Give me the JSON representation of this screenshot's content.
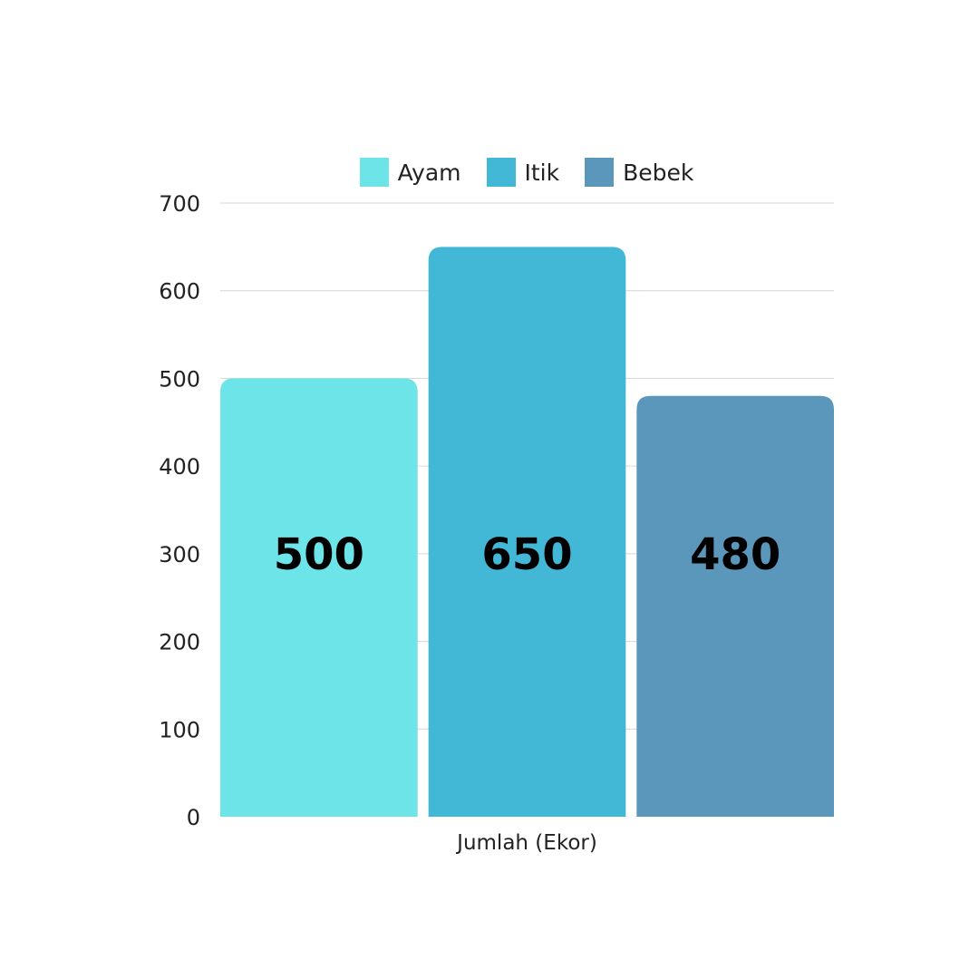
{
  "chart_data": {
    "type": "bar",
    "categories": [
      "Jumlah (Ekor)"
    ],
    "series": [
      {
        "name": "Ayam",
        "values": [
          500
        ],
        "color": "#6ce4e8"
      },
      {
        "name": "Itik",
        "values": [
          650
        ],
        "color": "#43b7d6"
      },
      {
        "name": "Bebek",
        "values": [
          480
        ],
        "color": "#5b96bb"
      }
    ],
    "ylim": [
      0,
      700
    ],
    "yticks": [
      0,
      100,
      200,
      300,
      400,
      500,
      600,
      700
    ],
    "ytick_labels": [
      "0",
      "100",
      "200",
      "300",
      "400",
      "500",
      "600",
      "700"
    ],
    "data_labels": [
      "500",
      "650",
      "480"
    ],
    "xlabel": "Jumlah (Ekor)",
    "ylabel": "",
    "title": "",
    "grid": true,
    "legend_position": "top"
  }
}
